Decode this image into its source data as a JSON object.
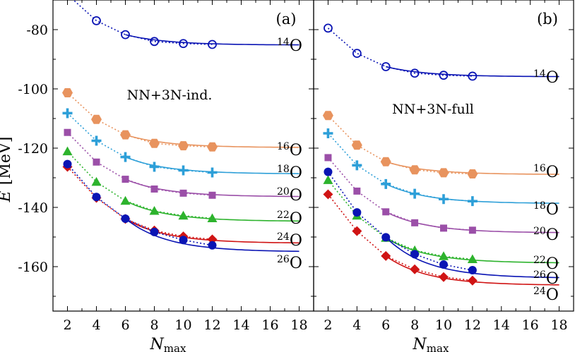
{
  "ylabel": {
    "symbol": "E",
    "unit": "[MeV]"
  },
  "xlabel": {
    "symbol": "N",
    "sub": "max"
  },
  "chart_data": [
    {
      "type": "line",
      "panel": "(a)",
      "interaction": "NN+3N-ind.",
      "xlim": [
        1,
        19
      ],
      "ylim": [
        -175,
        -70
      ],
      "xticks": [
        2,
        4,
        6,
        8,
        10,
        12,
        14,
        16,
        18
      ],
      "yticks": [
        -160,
        -140,
        -120,
        -100,
        -80
      ],
      "ytick_labels": [
        "-160",
        "-140",
        "-120",
        "-100",
        "-80"
      ],
      "series": [
        {
          "name": "14O",
          "mass": "14",
          "elem": "O",
          "color": "#0a14b4",
          "marker": "open-circle",
          "x": [
            4,
            6,
            8,
            10,
            12
          ],
          "values": [
            -77.0,
            -81.7,
            -84.0,
            -84.7,
            -85.0
          ],
          "fit_end": -85.2,
          "lead_x": 2.3,
          "lead_y": -69.5
        },
        {
          "name": "16O",
          "mass": "16",
          "elem": "O",
          "color": "#e8935e",
          "marker": "hexagon",
          "x": [
            2,
            4,
            6,
            8,
            10,
            12
          ],
          "values": [
            -101.3,
            -110.3,
            -115.5,
            -118.4,
            -119.2,
            -119.6
          ],
          "fit_end": -119.8
        },
        {
          "name": "18O",
          "mass": "18",
          "elem": "O",
          "color": "#2d9fd8",
          "marker": "plus",
          "x": [
            2,
            4,
            6,
            8,
            10,
            12
          ],
          "values": [
            -108.2,
            -117.5,
            -123.0,
            -126.3,
            -127.5,
            -128.2
          ],
          "fit_end": -128.7
        },
        {
          "name": "20O",
          "mass": "20",
          "elem": "O",
          "color": "#9b4fa8",
          "marker": "square",
          "x": [
            2,
            4,
            6,
            8,
            10,
            12
          ],
          "values": [
            -114.7,
            -124.7,
            -130.5,
            -133.8,
            -135.2,
            -135.9
          ],
          "fit_end": -136.4
        },
        {
          "name": "22O",
          "mass": "22",
          "elem": "O",
          "color": "#2db32d",
          "marker": "triangle",
          "x": [
            2,
            4,
            6,
            8,
            10,
            12
          ],
          "values": [
            -121.1,
            -131.4,
            -137.8,
            -141.2,
            -142.8,
            -143.7
          ],
          "fit_end": -144.7
        },
        {
          "name": "24O",
          "mass": "24",
          "elem": "O",
          "color": "#d01414",
          "marker": "diamond",
          "x": [
            2,
            4,
            6,
            8,
            10,
            12
          ],
          "values": [
            -126.3,
            -136.8,
            -143.9,
            -147.8,
            -149.8,
            -150.8
          ],
          "fit_end": -152.1
        },
        {
          "name": "26O",
          "mass": "26",
          "elem": "O",
          "color": "#0a14b4",
          "marker": "filled-circle",
          "x": [
            2,
            4,
            6,
            8,
            10,
            12
          ],
          "values": [
            -125.4,
            -136.5,
            -143.8,
            -148.3,
            -151.0,
            -152.8
          ],
          "fit_end": -155.0
        }
      ]
    },
    {
      "type": "line",
      "panel": "(b)",
      "interaction": "NN+3N-full",
      "xlim": [
        1,
        19
      ],
      "ylim": [
        -175,
        -70
      ],
      "xticks": [
        2,
        4,
        6,
        8,
        10,
        12,
        14,
        16,
        18
      ],
      "yticks": [
        -160,
        -140,
        -120,
        -100,
        -80
      ],
      "series": [
        {
          "name": "14O",
          "mass": "14",
          "elem": "O",
          "color": "#0a14b4",
          "marker": "open-circle",
          "x": [
            2,
            4,
            6,
            8,
            10,
            12
          ],
          "values": [
            -79.5,
            -88.0,
            -92.5,
            -94.7,
            -95.4,
            -95.7
          ],
          "fit_end": -95.9
        },
        {
          "name": "16O",
          "mass": "16",
          "elem": "O",
          "color": "#e8935e",
          "marker": "hexagon",
          "x": [
            2,
            4,
            6,
            8,
            10,
            12
          ],
          "values": [
            -109.0,
            -119.0,
            -124.6,
            -127.3,
            -128.3,
            -128.7
          ],
          "fit_end": -128.9
        },
        {
          "name": "18O",
          "mass": "18",
          "elem": "O",
          "color": "#2d9fd8",
          "marker": "plus",
          "x": [
            2,
            4,
            6,
            8,
            10,
            12
          ],
          "values": [
            -115.0,
            -125.8,
            -132.1,
            -135.4,
            -137.2,
            -137.9
          ],
          "fit_end": -138.7
        },
        {
          "name": "20O",
          "mass": "20",
          "elem": "O",
          "color": "#9b4fa8",
          "marker": "square",
          "x": [
            2,
            4,
            6,
            8,
            10,
            12
          ],
          "values": [
            -123.2,
            -134.5,
            -141.5,
            -145.2,
            -147.0,
            -147.7
          ],
          "fit_end": -148.6
        },
        {
          "name": "22O",
          "mass": "22",
          "elem": "O",
          "color": "#2db32d",
          "marker": "triangle",
          "x": [
            2,
            4,
            6,
            8,
            10,
            12
          ],
          "values": [
            -130.8,
            -142.8,
            -150.3,
            -154.5,
            -156.5,
            -157.5
          ],
          "fit_end": -158.8
        },
        {
          "name": "26O",
          "mass": "26",
          "elem": "O",
          "color": "#0a14b4",
          "marker": "filled-circle",
          "x": [
            2,
            4,
            6,
            8,
            10,
            12
          ],
          "values": [
            -128.0,
            -141.7,
            -150.1,
            -155.8,
            -159.3,
            -161.2
          ],
          "fit_end": -163.9
        },
        {
          "name": "24O",
          "mass": "24",
          "elem": "O",
          "color": "#d01414",
          "marker": "diamond",
          "x": [
            2,
            4,
            6,
            8,
            10,
            12
          ],
          "values": [
            -135.6,
            -148.0,
            -156.4,
            -160.9,
            -163.5,
            -164.7
          ],
          "fit_end": -166.3
        }
      ]
    }
  ]
}
